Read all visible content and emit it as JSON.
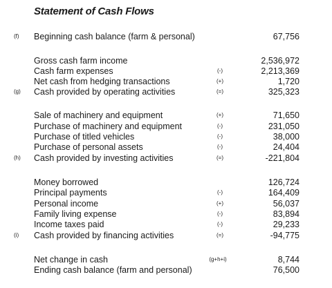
{
  "title": "Statement of Cash Flows",
  "rows": [
    {
      "marker": "(f)",
      "label": "Beginning cash balance (farm & personal)",
      "op": "",
      "value": "67,756"
    },
    {
      "marker": "",
      "label": "Gross cash farm income",
      "op": "",
      "value": "2,536,972"
    },
    {
      "marker": "",
      "label": "Cash farm expenses",
      "op": "(-)",
      "value": "2,213,369"
    },
    {
      "marker": "",
      "label": "Net cash from hedging transactions",
      "op": "(+)",
      "value": "1,720"
    },
    {
      "marker": "(g)",
      "label": "Cash provided by operating activities",
      "op": "(=)",
      "value": "325,323"
    },
    {
      "marker": "",
      "label": "Sale of machinery and equipment",
      "op": "(+)",
      "value": "71,650"
    },
    {
      "marker": "",
      "label": "Purchase of machinery and equipment",
      "op": "(-)",
      "value": "231,050"
    },
    {
      "marker": "",
      "label": "Purchase of titled vehicles",
      "op": "(-)",
      "value": "38,000"
    },
    {
      "marker": "",
      "label": "Purchase of personal assets",
      "op": "(-)",
      "value": "24,404"
    },
    {
      "marker": "(h)",
      "label": "Cash provided by investing activities",
      "op": "(=)",
      "value": "-221,804"
    },
    {
      "marker": "",
      "label": "Money borrowed",
      "op": "",
      "value": "126,724"
    },
    {
      "marker": "",
      "label": "Principal payments",
      "op": "(-)",
      "value": "164,409"
    },
    {
      "marker": "",
      "label": "Personal income",
      "op": "(+)",
      "value": "56,037"
    },
    {
      "marker": "",
      "label": "Family living expense",
      "op": "(-)",
      "value": "83,894"
    },
    {
      "marker": "",
      "label": "Income taxes paid",
      "op": "(-)",
      "value": "29,233"
    },
    {
      "marker": "(i)",
      "label": "Cash provided by financing activities",
      "op": "(=)",
      "value": "-94,775"
    },
    {
      "marker": "",
      "label": "Net change in cash",
      "op": "(g+h+i)",
      "value": "8,744"
    },
    {
      "marker": "",
      "label": "Ending cash balance (farm and personal)",
      "op": "",
      "value": "76,500"
    }
  ]
}
